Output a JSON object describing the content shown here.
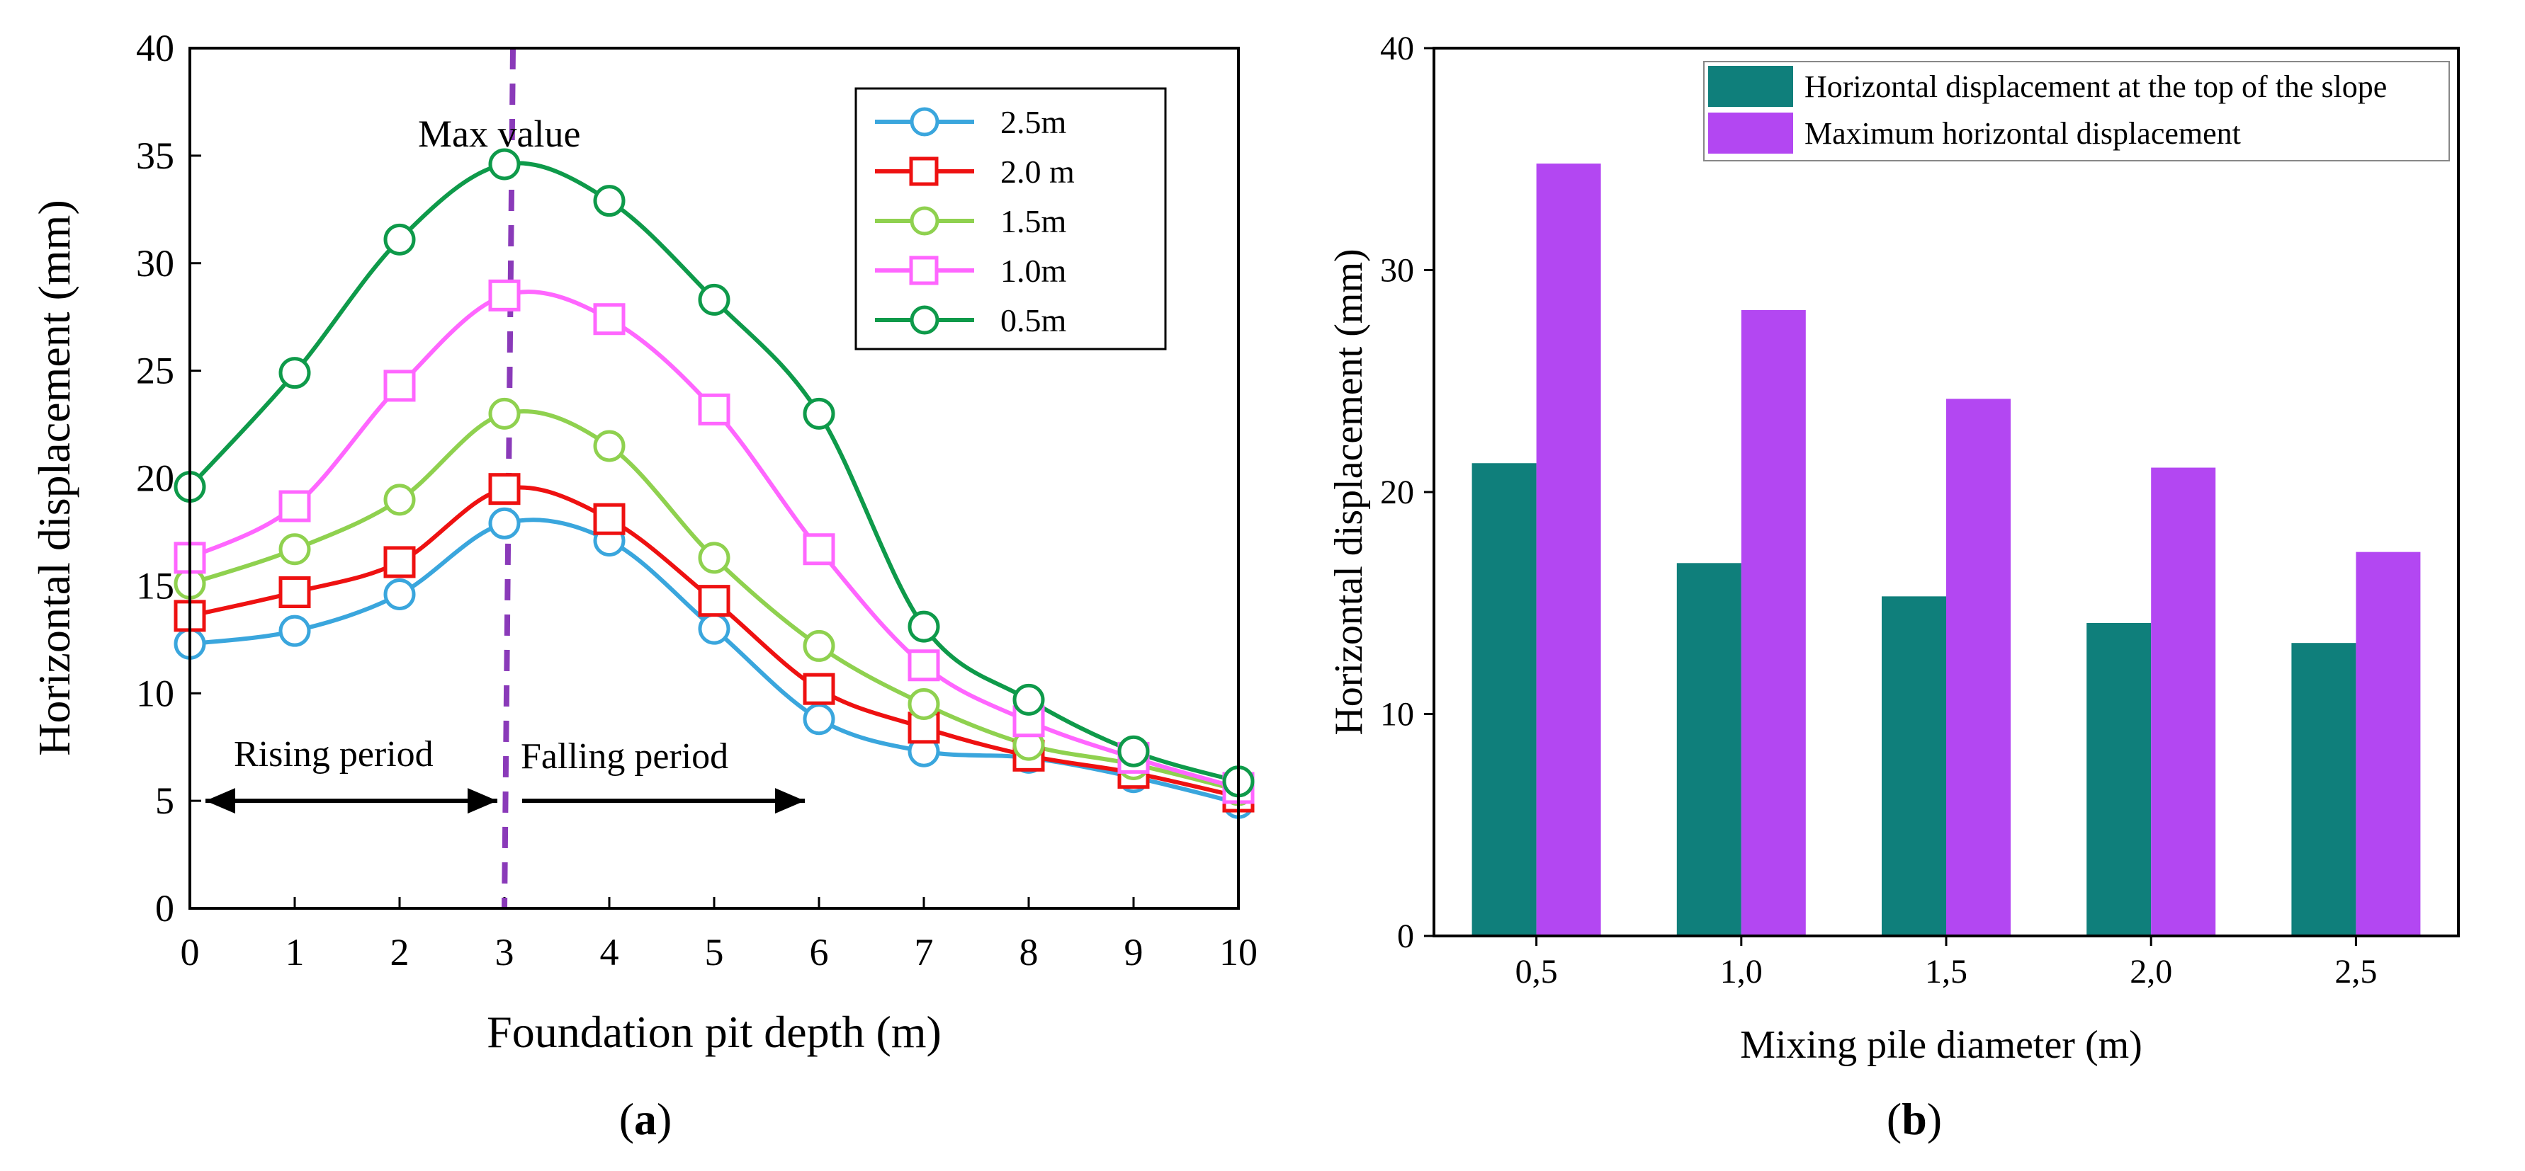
{
  "colors": {
    "s25": "#3aa6dd",
    "s20": "#ee1111",
    "s15": "#8fd14f",
    "s10": "#ff66ff",
    "s05": "#0e9a4a",
    "dashed": "#8a3ab9",
    "teal": "#0f7f7b",
    "violet": "#b347f2"
  },
  "chart_data": [
    {
      "id": "a",
      "type": "line",
      "panel_label": "a",
      "xlabel": "Foundation pit depth (m)",
      "ylabel": "Horizontal displacement (mm)",
      "xlim": [
        0,
        10
      ],
      "ylim": [
        0,
        40
      ],
      "xticks": [
        0,
        1,
        2,
        3,
        4,
        5,
        6,
        7,
        8,
        9,
        10
      ],
      "yticks": [
        0,
        5,
        10,
        15,
        20,
        25,
        30,
        35,
        40
      ],
      "x": [
        0,
        1,
        2,
        3,
        4,
        5,
        6,
        7,
        8,
        9,
        10
      ],
      "series": [
        {
          "name": "2.5m",
          "marker": "circle",
          "color_key": "s25",
          "values": [
            12.3,
            12.9,
            14.6,
            17.9,
            17.1,
            13.0,
            8.8,
            7.3,
            7.0,
            6.1,
            4.9
          ]
        },
        {
          "name": "2.0 m",
          "marker": "square",
          "color_key": "s20",
          "values": [
            13.6,
            14.7,
            16.1,
            19.5,
            18.1,
            14.3,
            10.2,
            8.4,
            7.1,
            6.3,
            5.2
          ]
        },
        {
          "name": "1.5m",
          "marker": "circle",
          "color_key": "s15",
          "values": [
            15.1,
            16.7,
            19.0,
            23.0,
            21.5,
            16.3,
            12.2,
            9.5,
            7.6,
            6.7,
            5.5
          ]
        },
        {
          "name": "1.0m",
          "marker": "square",
          "color_key": "s10",
          "values": [
            16.3,
            18.7,
            24.3,
            28.5,
            27.4,
            23.2,
            16.7,
            11.3,
            8.7,
            7.0,
            5.6
          ]
        },
        {
          "name": "0.5m",
          "marker": "circle",
          "color_key": "s05",
          "values": [
            19.6,
            24.9,
            31.1,
            34.6,
            32.9,
            28.3,
            23.0,
            13.1,
            9.7,
            7.3,
            5.9
          ]
        }
      ],
      "annotations": {
        "max_label": "Max value",
        "max_x": 3,
        "rising_label": "Rising period",
        "falling_label": "Falling period",
        "rising_range": [
          0,
          3
        ],
        "falling_range": [
          3,
          6
        ],
        "arrow_y": 5
      },
      "legend_position": "top-right"
    },
    {
      "id": "b",
      "type": "bar",
      "panel_label": "b",
      "xlabel": "Mixing pile diameter (m)",
      "ylabel": "Horizontal displacement (mm)",
      "ylim": [
        0,
        40
      ],
      "yticks": [
        0,
        10,
        20,
        30,
        40
      ],
      "categories": [
        "0,5",
        "1,0",
        "1,5",
        "2,0",
        "2,5"
      ],
      "series": [
        {
          "name": "Horizontal displacement at the top of the slope",
          "color_key": "teal",
          "values": [
            21.3,
            16.8,
            15.3,
            14.1,
            13.2
          ]
        },
        {
          "name": "Maximum horizontal displacement",
          "color_key": "violet",
          "values": [
            34.8,
            28.2,
            24.2,
            21.1,
            17.3
          ]
        }
      ],
      "legend_position": "top"
    }
  ]
}
